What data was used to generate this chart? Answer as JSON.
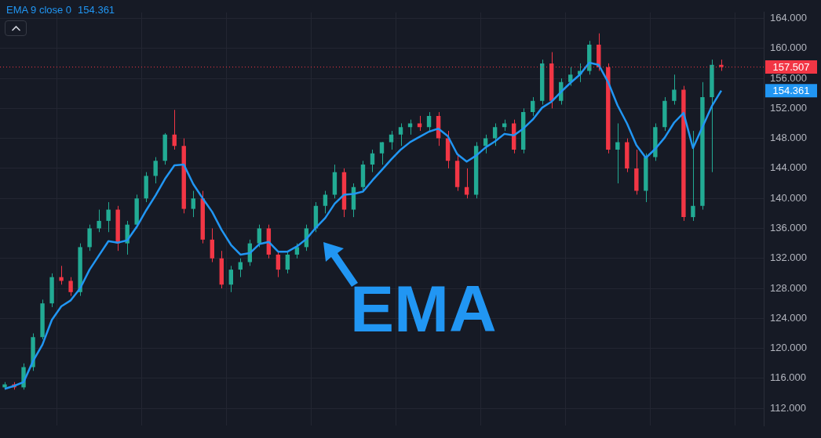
{
  "chart_data": {
    "type": "candlestick",
    "categories": [
      null,
      null,
      null,
      null,
      null,
      null,
      null,
      null,
      null,
      null,
      null,
      null,
      null,
      null,
      null,
      null,
      null,
      null,
      null,
      null,
      null,
      null,
      null,
      null,
      null,
      null,
      null,
      null,
      null,
      null,
      null,
      null,
      null,
      null,
      null,
      null,
      null,
      null,
      null,
      null,
      null,
      null,
      null,
      null,
      null,
      null,
      null,
      null,
      null,
      null,
      null,
      null,
      null,
      null,
      null,
      null,
      null,
      null,
      null,
      null,
      null,
      null,
      null,
      null,
      null,
      null,
      null,
      null,
      null,
      null,
      null,
      null,
      null,
      null,
      null,
      null,
      null,
      null,
      null,
      null,
      null
    ],
    "ohlc": [
      [
        114.8,
        115.5,
        114.5,
        115.2
      ],
      [
        115.2,
        115.5,
        114.5,
        114.8
      ],
      [
        114.8,
        118,
        114.5,
        117.5
      ],
      [
        117.5,
        122,
        117,
        121.5
      ],
      [
        121.5,
        126.5,
        121.2,
        126
      ],
      [
        126,
        130,
        125.5,
        129.5
      ],
      [
        129.5,
        131,
        128.5,
        129
      ],
      [
        129,
        129.5,
        127,
        127.5
      ],
      [
        127.5,
        134,
        127,
        133.5
      ],
      [
        133.5,
        136.5,
        133,
        136
      ],
      [
        136,
        138.5,
        135.5,
        137
      ],
      [
        137,
        139.5,
        135.5,
        138.5
      ],
      [
        138.5,
        139,
        133,
        134
      ],
      [
        134,
        137,
        132.5,
        136.5
      ],
      [
        136.5,
        140.5,
        136,
        140
      ],
      [
        140,
        143.5,
        139.5,
        143
      ],
      [
        143,
        145.5,
        142,
        145
      ],
      [
        145,
        148.7,
        144.5,
        148.5
      ],
      [
        148.5,
        151.8,
        146.5,
        147
      ],
      [
        147,
        148,
        138,
        138.6
      ],
      [
        138.6,
        141,
        137.5,
        140
      ],
      [
        140,
        141,
        134,
        134.5
      ],
      [
        134.5,
        136,
        131.5,
        132
      ],
      [
        132,
        133,
        128,
        128.5
      ],
      [
        128.5,
        131,
        127.5,
        130.5
      ],
      [
        130.5,
        132,
        129.5,
        131.5
      ],
      [
        131.5,
        134.5,
        131,
        134
      ],
      [
        134,
        136.5,
        133.5,
        136
      ],
      [
        136,
        136.5,
        132,
        132.5
      ],
      [
        132.5,
        133,
        129.5,
        130.5
      ],
      [
        130.5,
        133,
        130,
        132.5
      ],
      [
        132.5,
        134,
        132,
        133.5
      ],
      [
        133.5,
        136.5,
        133,
        136
      ],
      [
        136,
        139.5,
        135.5,
        139
      ],
      [
        139,
        141,
        138,
        140.5
      ],
      [
        140.5,
        144.5,
        140,
        143.5
      ],
      [
        143.5,
        144,
        137.5,
        138.5
      ],
      [
        138.5,
        142,
        137.5,
        141.5
      ],
      [
        141.5,
        145,
        141,
        144.5
      ],
      [
        144.5,
        146.5,
        143.5,
        146
      ],
      [
        146,
        147.5,
        144.5,
        147.5
      ],
      [
        147.5,
        149,
        146.5,
        148.5
      ],
      [
        148.5,
        150,
        147,
        149.5
      ],
      [
        149.5,
        150.5,
        148.5,
        150
      ],
      [
        150,
        151,
        149,
        149.5
      ],
      [
        149.5,
        151.5,
        149,
        151
      ],
      [
        151,
        151.5,
        147,
        148
      ],
      [
        148,
        149,
        144,
        145
      ],
      [
        145,
        146,
        141,
        141.5
      ],
      [
        141.5,
        144,
        140,
        140.5
      ],
      [
        140.5,
        147.5,
        140,
        147
      ],
      [
        147,
        148.5,
        146,
        148
      ],
      [
        148,
        150,
        147,
        149.5
      ],
      [
        149.5,
        150.5,
        149,
        150
      ],
      [
        150,
        150.5,
        146,
        146.5
      ],
      [
        146.5,
        152,
        146,
        151.5
      ],
      [
        151.5,
        153.5,
        151,
        153
      ],
      [
        153,
        158.5,
        152.5,
        158
      ],
      [
        158,
        159.5,
        152,
        153
      ],
      [
        153,
        156,
        152.5,
        155.5
      ],
      [
        155.5,
        157.5,
        155,
        156.5
      ],
      [
        156.5,
        158,
        155.5,
        157
      ],
      [
        157,
        161,
        156.5,
        160.5
      ],
      [
        160.5,
        162,
        157,
        157.5
      ],
      [
        157.5,
        158,
        146,
        146.5
      ],
      [
        146.5,
        150,
        142,
        147.5
      ],
      [
        147.5,
        148,
        143.5,
        144
      ],
      [
        144,
        146.5,
        140.5,
        141
      ],
      [
        141,
        146,
        139.5,
        145.5
      ],
      [
        145.5,
        150,
        145,
        149.5
      ],
      [
        149.5,
        153.5,
        149,
        153
      ],
      [
        153,
        156.5,
        152.5,
        154.5
      ],
      [
        154.5,
        155,
        137,
        137.5
      ],
      [
        137.5,
        149,
        137,
        139
      ],
      [
        139,
        155.5,
        138.5,
        153.5
      ],
      [
        153.5,
        158.5,
        143.5,
        157.8
      ],
      [
        157.8,
        158.5,
        157,
        157.507
      ],
      null,
      null,
      null,
      null
    ],
    "colors": [
      "#22ab94",
      "#f23645",
      "#22ab94",
      "#22ab94",
      "#22ab94",
      "#22ab94",
      "#f23645",
      "#f23645",
      "#22ab94",
      "#22ab94",
      "#22ab94",
      "#22ab94",
      "#f23645",
      "#22ab94",
      "#22ab94",
      "#22ab94",
      "#22ab94",
      "#22ab94",
      "#f23645",
      "#f23645",
      "#22ab94",
      "#f23645",
      "#f23645",
      "#f23645",
      "#22ab94",
      "#22ab94",
      "#22ab94",
      "#22ab94",
      "#f23645",
      "#f23645",
      "#22ab94",
      "#22ab94",
      "#22ab94",
      "#22ab94",
      "#22ab94",
      "#22ab94",
      "#f23645",
      "#22ab94",
      "#22ab94",
      "#22ab94",
      "#22ab94",
      "#22ab94",
      "#22ab94",
      "#22ab94",
      "#f23645",
      "#22ab94",
      "#f23645",
      "#f23645",
      "#f23645",
      "#f23645",
      "#22ab94",
      "#22ab94",
      "#22ab94",
      "#22ab94",
      "#f23645",
      "#22ab94",
      "#22ab94",
      "#22ab94",
      "#f23645",
      "#22ab94",
      "#22ab94",
      "#22ab94",
      "#22ab94",
      "#f23645",
      "#f23645",
      "#22ab94",
      "#f23645",
      "#f23645",
      "#22ab94",
      "#22ab94",
      "#22ab94",
      "#22ab94",
      "#f23645",
      "#22ab94",
      "#22ab94",
      "#22ab94",
      "#f23645",
      null,
      null,
      null,
      null
    ],
    "series": [
      {
        "name": "EMA 9 close 0",
        "type": "line",
        "color": "#2196f3",
        "values": [
          114.6,
          115.0,
          115.5,
          118.3,
          120.5,
          123.8,
          125.6,
          126.4,
          128,
          130.5,
          132.4,
          134.3,
          134.1,
          134.4,
          136.2,
          138.4,
          140.4,
          142.6,
          144.4,
          144.5,
          141.9,
          140,
          138.2,
          135.8,
          133.8,
          132.5,
          132.7,
          133.9,
          134.2,
          132.9,
          132.9,
          133.6,
          134.6,
          136.1,
          137.4,
          139.3,
          140.5,
          140.6,
          140.9,
          142.4,
          143.8,
          145.2,
          146.5,
          147.5,
          148.2,
          148.9,
          149.3,
          148.3,
          145.9,
          144.9,
          145.7,
          146.8,
          147.6,
          148.6,
          148.4,
          149.3,
          150.5,
          152.1,
          152.9,
          154.2,
          155.4,
          156.5,
          158.1,
          157.8,
          155.5,
          152.4,
          150,
          147.1,
          145.4,
          146.6,
          148.1,
          150.1,
          151.4,
          146.7,
          149.5,
          152.3,
          154.361,
          null,
          null,
          null,
          null
        ]
      }
    ],
    "ylim": [
      109.7,
      164.8
    ],
    "yticks": [
      {
        "value": 112,
        "label": "112.000"
      },
      {
        "value": 116,
        "label": "116.000"
      },
      {
        "value": 120,
        "label": "120.000"
      },
      {
        "value": 124,
        "label": "124.000"
      },
      {
        "value": 128,
        "label": "128.000"
      },
      {
        "value": 132,
        "label": "132.000"
      },
      {
        "value": 136,
        "label": "136.000"
      },
      {
        "value": 140,
        "label": "140.000"
      },
      {
        "value": 144,
        "label": "144.000"
      },
      {
        "value": 148,
        "label": "148.000"
      },
      {
        "value": 152,
        "label": "152.000"
      },
      {
        "value": 156,
        "label": "156.000"
      },
      {
        "value": 160,
        "label": "160.000"
      },
      {
        "value": 164,
        "label": "164.000"
      }
    ],
    "ref_lines": [
      {
        "axis": "y",
        "value": 157.507,
        "label": "157.507",
        "color": "#f23645",
        "line_style": "dotted"
      }
    ],
    "annotations": [
      "EMA",
      "154.361"
    ],
    "grid": true,
    "legend": "top left",
    "tick_labels": "y"
  }
}
